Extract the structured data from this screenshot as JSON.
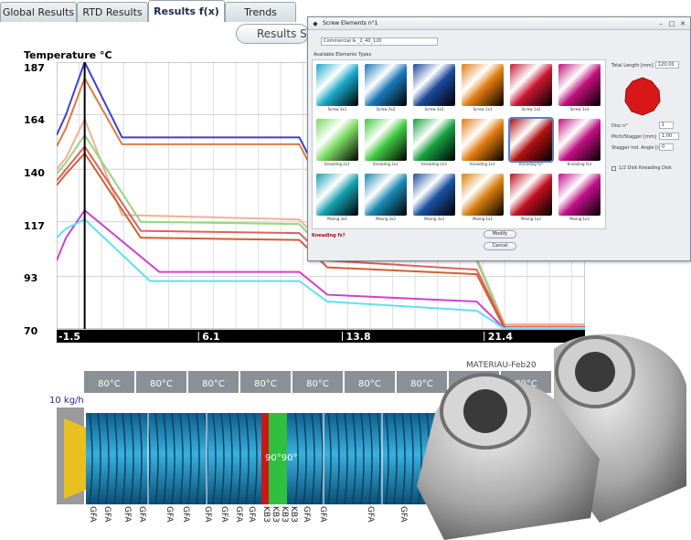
{
  "tabs": [
    {
      "label": "Global Results",
      "active": false
    },
    {
      "label": "RTD Results",
      "active": false
    },
    {
      "label": "Results f(x)",
      "active": true
    },
    {
      "label": "Trends",
      "active": false
    }
  ],
  "results_selector": {
    "label": "Results Se"
  },
  "chart_data": {
    "type": "line",
    "title": "",
    "ylabel": "Temperature °C",
    "xlabel": "",
    "yticks": [
      "187",
      "164",
      "140",
      "117",
      "93",
      "70"
    ],
    "xticks": [
      "-1.5",
      "6.1",
      "13.8",
      "21.4"
    ],
    "ylim": [
      70,
      187
    ],
    "xlim": [
      -1.5,
      26.8
    ],
    "grid": true,
    "marker_x": 0.0,
    "series": [
      {
        "color": "#3a44c8",
        "points": [
          [
            -1.5,
            155
          ],
          [
            -1.0,
            164
          ],
          [
            0.0,
            187
          ],
          [
            2.0,
            154
          ],
          [
            11.5,
            154
          ],
          [
            13.0,
            130
          ],
          [
            21.0,
            126
          ],
          [
            23.0,
            126
          ]
        ]
      },
      {
        "color": "#e07a40",
        "points": [
          [
            -1.5,
            150
          ],
          [
            -1.0,
            158
          ],
          [
            0.0,
            180
          ],
          [
            2.0,
            151
          ],
          [
            11.5,
            151
          ],
          [
            13.0,
            127
          ],
          [
            21.0,
            123
          ],
          [
            23.0,
            123
          ]
        ]
      },
      {
        "color": "#f0b090",
        "points": [
          [
            -1.5,
            140
          ],
          [
            -1.0,
            145
          ],
          [
            0.0,
            162
          ],
          [
            2.0,
            120
          ],
          [
            11.5,
            118
          ],
          [
            13.0,
            105
          ],
          [
            21.0,
            101
          ],
          [
            22.5,
            72
          ],
          [
            26.8,
            72
          ]
        ]
      },
      {
        "color": "#90d880",
        "points": [
          [
            -1.5,
            138
          ],
          [
            -1.0,
            143
          ],
          [
            0.0,
            155
          ],
          [
            3.0,
            117
          ],
          [
            11.5,
            116
          ],
          [
            13.0,
            103
          ],
          [
            21.0,
            100
          ],
          [
            22.5,
            71
          ],
          [
            26.8,
            71
          ]
        ]
      },
      {
        "color": "#e06060",
        "points": [
          [
            -1.5,
            135
          ],
          [
            -1.0,
            140
          ],
          [
            0.0,
            150
          ],
          [
            3.0,
            113
          ],
          [
            11.5,
            112
          ],
          [
            13.0,
            100
          ],
          [
            21.0,
            96
          ],
          [
            22.5,
            71
          ],
          [
            26.8,
            71
          ]
        ]
      },
      {
        "color": "#d06030",
        "points": [
          [
            -1.5,
            133
          ],
          [
            -1.0,
            138
          ],
          [
            0.0,
            147
          ],
          [
            3.0,
            110
          ],
          [
            11.5,
            109
          ],
          [
            13.0,
            97
          ],
          [
            21.0,
            94
          ],
          [
            22.5,
            70
          ],
          [
            26.8,
            70
          ]
        ]
      },
      {
        "color": "#d040d0",
        "points": [
          [
            -1.5,
            100
          ],
          [
            -1.0,
            110
          ],
          [
            0.0,
            122
          ],
          [
            4.0,
            95
          ],
          [
            11.5,
            95
          ],
          [
            13.0,
            85
          ],
          [
            21.0,
            82
          ],
          [
            22.5,
            70
          ],
          [
            26.8,
            70
          ]
        ]
      },
      {
        "color": "#60e0f0",
        "points": [
          [
            -1.5,
            110
          ],
          [
            -1.0,
            114
          ],
          [
            0.0,
            118
          ],
          [
            3.5,
            91
          ],
          [
            11.5,
            91
          ],
          [
            13.0,
            82
          ],
          [
            21.0,
            78
          ],
          [
            22.5,
            70
          ],
          [
            26.8,
            70
          ]
        ]
      }
    ]
  },
  "dialog": {
    "title": "Screw Elements n°1",
    "commercial_label": "Commercial & _2_40_120",
    "available_label": "Available Elements Types",
    "total_length_label": "Total Length [mm]",
    "total_length_value": "120.00",
    "disc_label": "Disc n°",
    "disc_value": "1",
    "pitch_label": "Pitch/Stagger [mm]",
    "pitch_value": "1.00",
    "stagger_label": "Stagger Ind. Angle [deg]",
    "stagger_value": "0",
    "checkbox_label": "1/2 Disk Kneading Disk",
    "selected_element": "Kneading fx?",
    "modify_label": "Modify",
    "cancel_label": "Cancel",
    "rows": [
      {
        "colors": [
          "#1aa8c8",
          "#1a78b8",
          "#1a4898",
          "#e07a10",
          "#c81830",
          "#c0107a"
        ],
        "labels": [
          "Screw 3x1",
          "Screw 3x2",
          "Screw 3x3",
          "Screw 1x1",
          "Screw 1x2",
          "Screw 1x3"
        ]
      },
      {
        "colors": [
          "#7ad860",
          "#40c840",
          "#18a040",
          "#e07a10",
          "#b01010",
          "#c01080"
        ],
        "labels": [
          "Kneading 2x1",
          "Kneading 2x2",
          "Kneading 2x3",
          "Kneading 1x1",
          "Kneading fx?",
          "Kneading fx3"
        ]
      },
      {
        "colors": [
          "#18a0b0",
          "#1a88b0",
          "#1a50a0",
          "#d88010",
          "#c01020",
          "#c01088"
        ],
        "labels": [
          "Mixing 3x1",
          "Mixing 3x2",
          "Mixing 3x3",
          "Mixing 1x1",
          "Mixing 1x2",
          "Mixing 1x3"
        ]
      }
    ]
  },
  "barrel": {
    "zones": [
      "80°C",
      "80°C",
      "80°C",
      "80°C",
      "80°C",
      "80°C",
      "80°C",
      "80°C",
      "80°C"
    ],
    "feed_rate": "10 kg/h",
    "material": "MATERIAU-Feb20",
    "center_label": "90°90°",
    "elements": [
      "GFA",
      "GFA",
      "GFA",
      "GFA",
      "GFA",
      "GFA",
      "GFA",
      "GFA",
      "GFA",
      "GFA",
      "KB3",
      "KB3",
      "KB3",
      "KB3",
      "GFA",
      "GFA",
      "GFA",
      "GFA"
    ]
  },
  "colors": {
    "screw": "#1a8fc0",
    "kneading_red": "#c81818",
    "kneading_green": "#30c040",
    "barrel_grey": "#8a9096",
    "feed_yellow": "#e8c020"
  }
}
